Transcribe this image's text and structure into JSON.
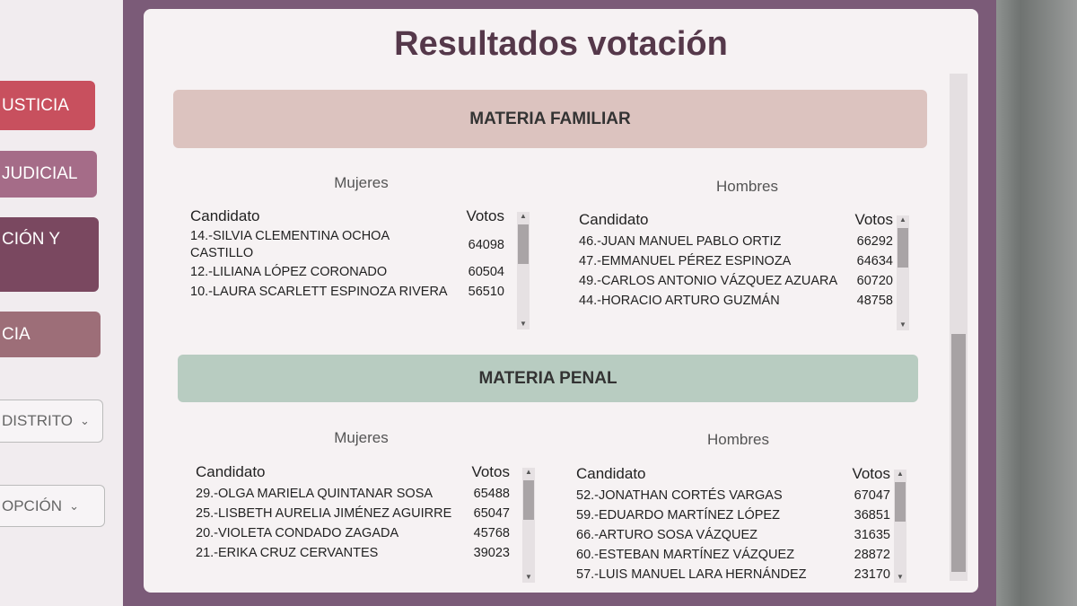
{
  "sidebar": {
    "buttons": [
      "USTICIA",
      "JUDICIAL",
      "CIÓN Y",
      "CIA",
      "DISTRITO",
      "OPCIÓN"
    ]
  },
  "title": "Resultados votación",
  "sections": [
    {
      "title": "MATERIA FAMILIAR",
      "tables": [
        {
          "heading": "Mujeres",
          "columns": [
            "Candidato",
            "Votos"
          ],
          "rows": [
            [
              "14.-SILVIA CLEMENTINA OCHOA CASTILLO",
              64098
            ],
            [
              "12.-LILIANA LÓPEZ CORONADO",
              60504
            ],
            [
              "10.-LAURA SCARLETT ESPINOZA RIVERA",
              56510
            ]
          ]
        },
        {
          "heading": "Hombres",
          "columns": [
            "Candidato",
            "Votos"
          ],
          "rows": [
            [
              "46.-JUAN MANUEL PABLO ORTIZ",
              66292
            ],
            [
              "47.-EMMANUEL PÉREZ ESPINOZA",
              64634
            ],
            [
              "49.-CARLOS ANTONIO VÁZQUEZ AZUARA",
              60720
            ],
            [
              "44.-HORACIO ARTURO GUZMÁN",
              48758
            ]
          ]
        }
      ]
    },
    {
      "title": "MATERIA PENAL",
      "tables": [
        {
          "heading": "Mujeres",
          "columns": [
            "Candidato",
            "Votos"
          ],
          "rows": [
            [
              "29.-OLGA MARIELA QUINTANAR SOSA",
              65488
            ],
            [
              "25.-LISBETH AURELIA JIMÉNEZ AGUIRRE",
              65047
            ],
            [
              "20.-VIOLETA CONDADO ZAGADA",
              45768
            ],
            [
              "21.-ERIKA CRUZ CERVANTES",
              39023
            ]
          ]
        },
        {
          "heading": "Hombres",
          "columns": [
            "Candidato",
            "Votos"
          ],
          "rows": [
            [
              "52.-JONATHAN CORTÉS VARGAS",
              67047
            ],
            [
              "59.-EDUARDO MARTÍNEZ LÓPEZ",
              36851
            ],
            [
              "66.-ARTURO SOSA VÁZQUEZ",
              31635
            ],
            [
              "60.-ESTEBAN MARTÍNEZ VÁZQUEZ",
              28872
            ],
            [
              "57.-LUIS MANUEL LARA HERNÁNDEZ",
              23170
            ]
          ]
        }
      ]
    }
  ]
}
